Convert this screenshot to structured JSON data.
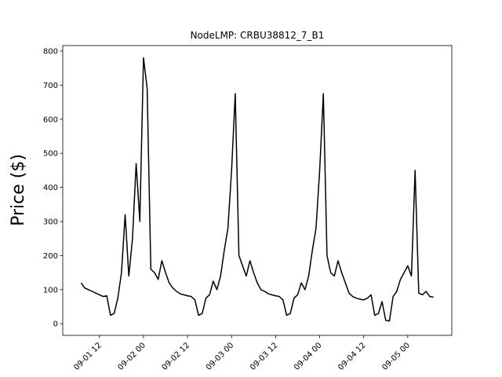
{
  "chart_data": {
    "type": "line",
    "title": "NodeLMP: CRBU38812_7_B1",
    "y_label": "Price ($)",
    "color": "#000000",
    "x": [
      "09-01 07",
      "09-01 08",
      "09-01 09",
      "09-01 10",
      "09-01 11",
      "09-01 12",
      "09-01 13",
      "09-01 14",
      "09-01 15",
      "09-01 16",
      "09-01 17",
      "09-01 18",
      "09-01 19",
      "09-01 20",
      "09-01 21",
      "09-01 22",
      "09-01 23",
      "09-02 00",
      "09-02 01",
      "09-02 02",
      "09-02 03",
      "09-02 04",
      "09-02 05",
      "09-02 06",
      "09-02 07",
      "09-02 08",
      "09-02 09",
      "09-02 10",
      "09-02 11",
      "09-02 12",
      "09-02 13",
      "09-02 14",
      "09-02 15",
      "09-02 16",
      "09-02 17",
      "09-02 18",
      "09-02 19",
      "09-02 20",
      "09-02 21",
      "09-02 22",
      "09-02 23",
      "09-03 00",
      "09-03 01",
      "09-03 02",
      "09-03 03",
      "09-03 04",
      "09-03 05",
      "09-03 06",
      "09-03 07",
      "09-03 08",
      "09-03 09",
      "09-03 10",
      "09-03 11",
      "09-03 12",
      "09-03 13",
      "09-03 14",
      "09-03 15",
      "09-03 16",
      "09-03 17",
      "09-03 18",
      "09-03 19",
      "09-03 20",
      "09-03 21",
      "09-03 22",
      "09-03 23",
      "09-04 00",
      "09-04 01",
      "09-04 02",
      "09-04 03",
      "09-04 04",
      "09-04 05",
      "09-04 06",
      "09-04 07",
      "09-04 08",
      "09-04 09",
      "09-04 10",
      "09-04 11",
      "09-04 12",
      "09-04 13",
      "09-04 14",
      "09-04 15",
      "09-04 16",
      "09-04 17",
      "09-04 18",
      "09-04 19",
      "09-04 20",
      "09-04 21",
      "09-04 22",
      "09-04 23",
      "09-05 00",
      "09-05 01",
      "09-05 02",
      "09-05 03",
      "09-05 04",
      "09-05 05",
      "09-05 06",
      "09-05 07"
    ],
    "values": [
      120,
      105,
      100,
      95,
      90,
      85,
      80,
      82,
      25,
      30,
      75,
      150,
      320,
      140,
      250,
      470,
      300,
      780,
      690,
      160,
      150,
      130,
      185,
      150,
      120,
      105,
      95,
      88,
      85,
      82,
      80,
      70,
      25,
      30,
      75,
      85,
      125,
      100,
      140,
      215,
      280,
      450,
      675,
      200,
      170,
      140,
      185,
      150,
      120,
      100,
      95,
      88,
      85,
      82,
      80,
      70,
      25,
      30,
      75,
      85,
      120,
      100,
      140,
      215,
      280,
      450,
      675,
      200,
      150,
      140,
      185,
      150,
      120,
      90,
      80,
      75,
      72,
      70,
      75,
      85,
      25,
      30,
      65,
      10,
      8,
      80,
      95,
      130,
      150,
      170,
      140,
      450,
      90,
      85,
      95,
      80,
      78
    ],
    "xlim": [
      "09-01 02",
      "09-05 12"
    ],
    "xticks": [
      "09-01 12",
      "09-02 00",
      "09-02 12",
      "09-03 00",
      "09-03 12",
      "09-04 00",
      "09-04 12",
      "09-05 00"
    ],
    "ylim": [
      -34,
      816
    ],
    "yticks": [
      0,
      100,
      200,
      300,
      400,
      500,
      600,
      700,
      800
    ]
  }
}
